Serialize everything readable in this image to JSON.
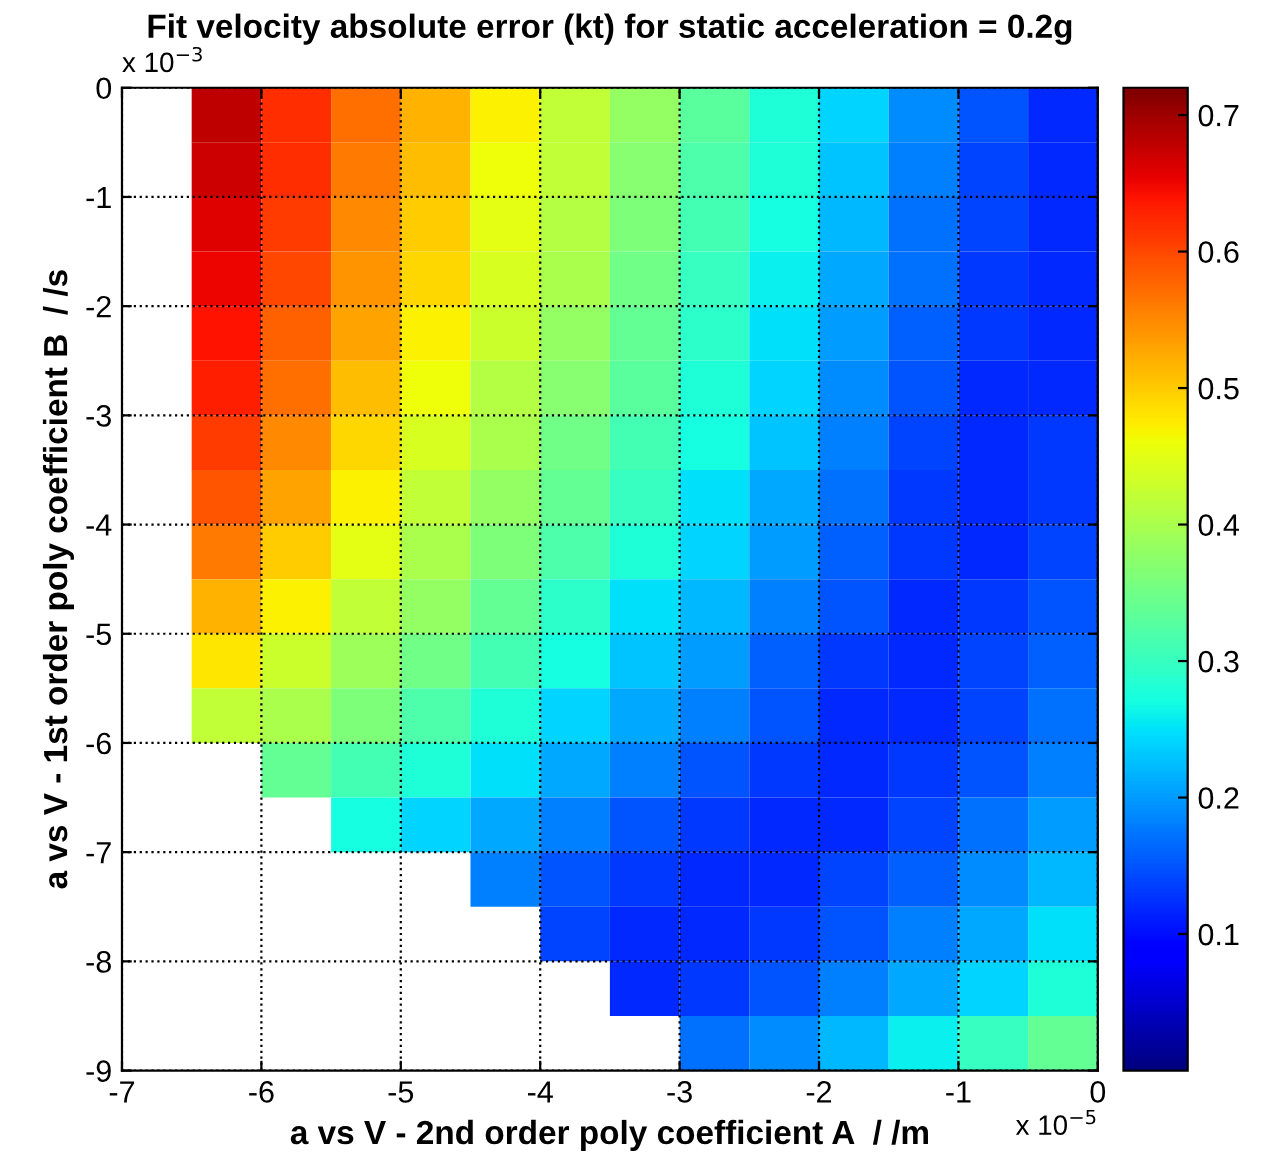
{
  "chart_data": {
    "type": "heatmap",
    "title": "Fit velocity absolute error (kt) for static acceleration = 0.2g",
    "xlabel": "a vs V - 2nd order poly coefficient A  / /m",
    "ylabel": "a vs V - 1st order poly coefficient B  / /s",
    "annotations": [
      "x 10$^{−3}$",
      "x 10$^{−5}$"
    ],
    "x": [
      -6.25,
      -5.75,
      -5.25,
      -4.75,
      -4.25,
      -3.75,
      -3.25,
      -2.75,
      -2.25,
      -1.75,
      -1.25,
      -0.75,
      -0.25
    ],
    "y": [
      -0.25,
      -0.75,
      -1.25,
      -1.75,
      -2.25,
      -2.75,
      -3.25,
      -3.75,
      -4.25,
      -4.75,
      -5.25,
      -5.75,
      -6.25,
      -6.75,
      -7.25,
      -7.75,
      -8.25,
      -8.75
    ],
    "cells": [
      [
        0.68,
        0.62,
        0.57,
        0.52,
        0.47,
        0.42,
        0.38,
        0.33,
        0.28,
        0.24,
        0.19,
        0.15,
        0.12
      ],
      [
        0.67,
        0.62,
        0.56,
        0.51,
        0.46,
        0.42,
        0.37,
        0.32,
        0.28,
        0.23,
        0.18,
        0.14,
        0.12
      ],
      [
        0.66,
        0.61,
        0.55,
        0.5,
        0.45,
        0.41,
        0.36,
        0.31,
        0.27,
        0.22,
        0.17,
        0.14,
        0.12
      ],
      [
        0.65,
        0.6,
        0.54,
        0.49,
        0.44,
        0.4,
        0.35,
        0.3,
        0.26,
        0.21,
        0.17,
        0.13,
        0.12
      ],
      [
        0.64,
        0.58,
        0.53,
        0.47,
        0.43,
        0.38,
        0.34,
        0.29,
        0.25,
        0.2,
        0.16,
        0.13,
        0.12
      ],
      [
        0.63,
        0.57,
        0.51,
        0.46,
        0.41,
        0.37,
        0.33,
        0.28,
        0.24,
        0.19,
        0.15,
        0.12,
        0.12
      ],
      [
        0.61,
        0.55,
        0.49,
        0.44,
        0.4,
        0.35,
        0.31,
        0.27,
        0.23,
        0.18,
        0.14,
        0.12,
        0.13
      ],
      [
        0.59,
        0.53,
        0.47,
        0.42,
        0.38,
        0.34,
        0.3,
        0.25,
        0.21,
        0.17,
        0.13,
        0.12,
        0.13
      ],
      [
        0.56,
        0.5,
        0.45,
        0.4,
        0.36,
        0.32,
        0.28,
        0.24,
        0.2,
        0.16,
        0.13,
        0.12,
        0.14
      ],
      [
        0.52,
        0.47,
        0.42,
        0.38,
        0.34,
        0.29,
        0.25,
        0.22,
        0.18,
        0.15,
        0.12,
        0.13,
        0.15
      ],
      [
        0.48,
        0.43,
        0.39,
        0.35,
        0.31,
        0.27,
        0.23,
        0.2,
        0.16,
        0.13,
        0.12,
        0.14,
        0.16
      ],
      [
        0.42,
        0.4,
        0.36,
        0.32,
        0.28,
        0.24,
        0.21,
        0.18,
        0.15,
        0.12,
        0.12,
        0.14,
        0.17
      ],
      [
        null,
        0.34,
        0.31,
        0.28,
        0.25,
        0.21,
        0.18,
        0.15,
        0.13,
        0.12,
        0.13,
        0.15,
        0.18
      ],
      [
        null,
        null,
        0.27,
        0.24,
        0.21,
        0.18,
        0.15,
        0.13,
        0.12,
        0.12,
        0.14,
        0.17,
        0.2
      ],
      [
        null,
        null,
        null,
        null,
        0.18,
        0.15,
        0.13,
        0.12,
        0.12,
        0.14,
        0.16,
        0.19,
        0.22
      ],
      [
        null,
        null,
        null,
        null,
        null,
        0.14,
        0.12,
        0.12,
        0.13,
        0.15,
        0.18,
        0.21,
        0.25
      ],
      [
        null,
        null,
        null,
        null,
        null,
        null,
        0.12,
        0.13,
        0.15,
        0.18,
        0.21,
        0.24,
        0.28
      ],
      [
        null,
        null,
        null,
        null,
        null,
        null,
        null,
        0.17,
        0.19,
        0.22,
        0.26,
        0.3,
        0.34
      ]
    ],
    "xlim": [
      -7,
      0
    ],
    "xticks": [
      -7,
      -6,
      -5,
      -4,
      -3,
      -2,
      -1,
      0
    ],
    "ylim": [
      -9,
      0
    ],
    "yticks": [
      0,
      -1,
      -2,
      -3,
      -4,
      -5,
      -6,
      -7,
      -8,
      -9
    ],
    "clim": [
      0,
      0.72
    ],
    "cticks": [
      0.1,
      0.2,
      0.3,
      0.4,
      0.5,
      0.6,
      0.7
    ],
    "grid": true
  }
}
